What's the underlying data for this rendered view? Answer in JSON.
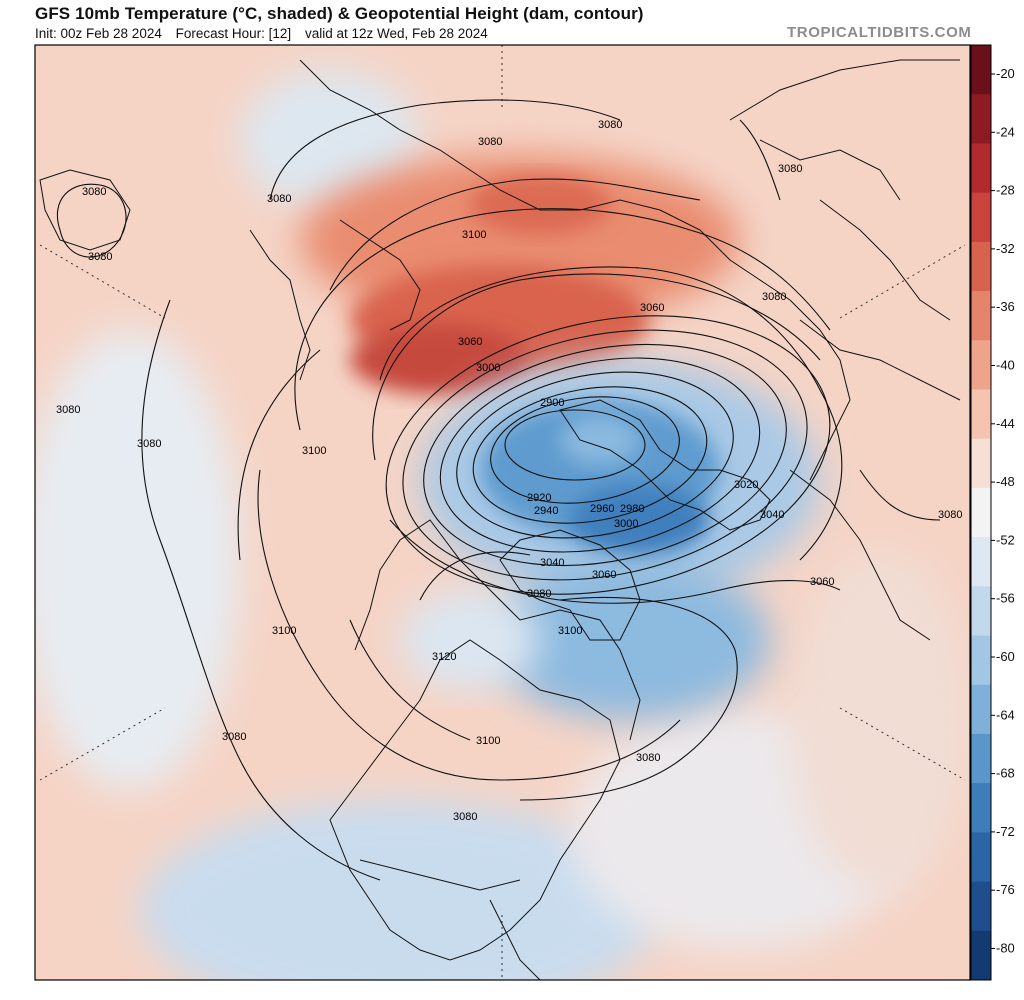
{
  "header": {
    "title": "GFS 10mb Temperature (°C, shaded) & Geopotential Height (dam, contour)",
    "init": "Init: 00z Feb 28 2024",
    "forecast_hour": "Forecast Hour: [12]",
    "valid": "valid at 12z Wed, Feb 28 2024",
    "brand": "TROPICALTIDBITS.COM"
  },
  "colorbar": {
    "ticks": [
      "-20",
      "-24",
      "-28",
      "-32",
      "-36",
      "-40",
      "-44",
      "-48",
      "-52",
      "-56",
      "-60",
      "-64",
      "-68",
      "-72",
      "-76",
      "-80"
    ],
    "colors": [
      "#6b0f1a",
      "#8e1a24",
      "#b02a2e",
      "#c8443c",
      "#d7634f",
      "#e4846b",
      "#eea48a",
      "#f4c4b0",
      "#f6e0d6",
      "#f3f3f3",
      "#dde8f2",
      "#c2d9ec",
      "#a2c6e3",
      "#7fb0d8",
      "#5a96c9",
      "#3d7dba",
      "#2c65a5",
      "#1e4e8c",
      "#143a72"
    ]
  },
  "contour_labels": [
    "3080",
    "3080",
    "3080",
    "3080",
    "3080",
    "3080",
    "3100",
    "3060",
    "3000",
    "3060",
    "2900",
    "3080",
    "3080",
    "3080",
    "3100",
    "2920",
    "2940",
    "2960",
    "2980",
    "3000",
    "3020",
    "3040",
    "3080",
    "3040",
    "3060",
    "3060",
    "3080",
    "3100",
    "3100",
    "3120",
    "3080",
    "3100",
    "3080",
    "3080"
  ],
  "map": {
    "description_colors": {
      "warm": "#d86a50",
      "warm_light": "#f3b8a2",
      "cold": "#3f86c4",
      "cold_light": "#bcd6ec",
      "neutral": "#f2eeee"
    }
  }
}
